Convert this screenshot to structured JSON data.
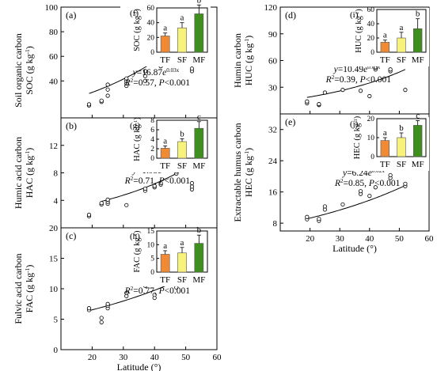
{
  "chart_data": [
    {
      "type": "scatter",
      "panel_label": "(a)",
      "ylabel": [
        "Soil organic carbon",
        "SOC (g kg⁻¹)"
      ],
      "xlabel": "",
      "xlim": [
        10,
        60
      ],
      "ylim": [
        10,
        100
      ],
      "xticks": [],
      "yticks": [
        40,
        60,
        80,
        100
      ],
      "fit": {
        "a": 16.87,
        "b": 0.03,
        "x_range": [
          19,
          52
        ]
      },
      "annotation": {
        "equation": "y=16.87e0.03x",
        "r2": "R2=0.57, P<0.001"
      },
      "points": [
        [
          19,
          20
        ],
        [
          19,
          21
        ],
        [
          23,
          23
        ],
        [
          23,
          24
        ],
        [
          25,
          28
        ],
        [
          25,
          33
        ],
        [
          25,
          37
        ],
        [
          31,
          36
        ],
        [
          31,
          38
        ],
        [
          31,
          40
        ],
        [
          31,
          42
        ],
        [
          37,
          40
        ],
        [
          37,
          44
        ],
        [
          37,
          48
        ],
        [
          42,
          52
        ],
        [
          42,
          56
        ],
        [
          47,
          58
        ],
        [
          47,
          65
        ],
        [
          47,
          70
        ],
        [
          48,
          75
        ],
        [
          48,
          87
        ],
        [
          52,
          48
        ],
        [
          52,
          50
        ]
      ],
      "inset": {
        "panel_label": "(f)",
        "ylabel": "SOC (g kg⁻¹)",
        "categories": [
          "TF",
          "SF",
          "MF"
        ],
        "values": [
          22,
          33,
          52
        ],
        "errors": [
          4,
          7,
          12
        ],
        "letters": [
          "a",
          "a",
          "b"
        ],
        "colors": [
          "#f08a35",
          "#f6f27a",
          "#3f8f1e"
        ],
        "ylim": [
          0,
          60
        ],
        "yticks": [
          0,
          20,
          40,
          60
        ]
      }
    },
    {
      "type": "scatter",
      "panel_label": "(b)",
      "ylabel": [
        "Humic acid carbon",
        "HAC (g kg⁻¹)"
      ],
      "xlabel": "",
      "xlim": [
        10,
        60
      ],
      "ylim": [
        0,
        16
      ],
      "xticks": [],
      "yticks": [
        4,
        8,
        12
      ],
      "fit": {
        "a": 1.93,
        "b": 0.03,
        "x_range": [
          23,
          52
        ]
      },
      "annotation": {
        "equation": "y=1.93e0.03x",
        "r2": "R2=0.71, P<0.001"
      },
      "points": [
        [
          19,
          1.7
        ],
        [
          19,
          1.9
        ],
        [
          23,
          3.4
        ],
        [
          23,
          3.6
        ],
        [
          25,
          3.5
        ],
        [
          25,
          3.8
        ],
        [
          25,
          4.1
        ],
        [
          31,
          3.3
        ],
        [
          37,
          5.4
        ],
        [
          37,
          5.7
        ],
        [
          40,
          5.9
        ],
        [
          40,
          6.1
        ],
        [
          42,
          6.3
        ],
        [
          42,
          6.5
        ],
        [
          47,
          7.9
        ],
        [
          47,
          8.2
        ],
        [
          52,
          5.6
        ],
        [
          52,
          6.0
        ],
        [
          52,
          6.5
        ]
      ],
      "inset": {
        "panel_label": "(g)",
        "ylabel": "HAC (g kg⁻¹)",
        "categories": [
          "TF",
          "SF",
          "MF"
        ],
        "values": [
          2.1,
          3.5,
          6.3
        ],
        "errors": [
          0.5,
          0.6,
          1.4
        ],
        "letters": [
          "a",
          "b",
          "c"
        ],
        "colors": [
          "#f08a35",
          "#f6f27a",
          "#3f8f1e"
        ],
        "ylim": [
          0,
          8
        ],
        "yticks": [
          0,
          2,
          4,
          6,
          8
        ]
      }
    },
    {
      "type": "scatter",
      "panel_label": "(c)",
      "ylabel": [
        "Fulvic acid carbon",
        "FAC (g kg⁻¹)"
      ],
      "xlabel": "Latitude (°)",
      "xlim": [
        10,
        60
      ],
      "ylim": [
        0,
        20
      ],
      "xticks": [
        20,
        30,
        40,
        50,
        60
      ],
      "yticks": [
        0,
        5,
        10,
        15,
        20
      ],
      "fit": {
        "a": 4.38,
        "b": 0.02,
        "x_range": [
          19,
          52
        ]
      },
      "annotation": {
        "equation": "y=4.38e0.02x",
        "r2": "R2=0.77, P<0.001"
      },
      "points": [
        [
          19,
          6.5
        ],
        [
          19,
          6.8
        ],
        [
          23,
          4.5
        ],
        [
          23,
          5.2
        ],
        [
          25,
          6.8
        ],
        [
          25,
          7.2
        ],
        [
          25,
          7.5
        ],
        [
          31,
          8.8
        ],
        [
          31,
          9.3
        ],
        [
          37,
          10.5
        ],
        [
          40,
          8.5
        ],
        [
          40,
          9
        ],
        [
          42,
          11
        ],
        [
          47,
          10.2
        ],
        [
          47,
          11
        ],
        [
          47,
          12
        ],
        [
          48,
          13
        ],
        [
          52,
          11.3
        ]
      ],
      "inset": {
        "panel_label": "(h)",
        "ylabel": "FAC (g kg⁻¹)",
        "categories": [
          "TF",
          "SF",
          "MF"
        ],
        "values": [
          6.5,
          7.0,
          10.5
        ],
        "errors": [
          1.3,
          2.0,
          3.0
        ],
        "letters": [
          "a",
          "a",
          "b"
        ],
        "colors": [
          "#f08a35",
          "#f6f27a",
          "#3f8f1e"
        ],
        "ylim": [
          0,
          15
        ],
        "yticks": [
          0,
          5,
          10,
          15
        ]
      }
    },
    {
      "type": "scatter",
      "panel_label": "(d)",
      "ylabel": [
        "Humin carbon",
        "HUC (g kg⁻¹)"
      ],
      "xlabel": "",
      "xlim": [
        10,
        60
      ],
      "ylim": [
        0,
        120
      ],
      "xticks": [],
      "yticks": [
        30,
        60,
        90,
        120
      ],
      "fit": {
        "a": 10.49,
        "b": 0.03,
        "x_range": [
          19,
          52
        ]
      },
      "annotation": {
        "equation": "y=10.49e0.03x",
        "r2": "R2=0.39, P<0.001"
      },
      "points": [
        [
          19,
          12
        ],
        [
          19,
          14
        ],
        [
          23,
          10
        ],
        [
          23,
          11
        ],
        [
          25,
          24
        ],
        [
          31,
          27
        ],
        [
          37,
          26
        ],
        [
          40,
          20
        ],
        [
          42,
          50
        ],
        [
          42,
          52
        ],
        [
          47,
          48
        ],
        [
          47,
          50
        ],
        [
          52,
          27
        ]
      ],
      "inset": {
        "panel_label": "(i)",
        "ylabel": "HUC (g kg⁻¹)",
        "categories": [
          "TF",
          "SF",
          "MF"
        ],
        "values": [
          14,
          20,
          33
        ],
        "errors": [
          3,
          8,
          14
        ],
        "letters": [
          "a",
          "a",
          "b"
        ],
        "colors": [
          "#f08a35",
          "#f6f27a",
          "#3f8f1e"
        ],
        "ylim": [
          0,
          60
        ],
        "yticks": [
          0,
          20,
          40,
          60
        ]
      }
    },
    {
      "type": "scatter",
      "panel_label": "(e)",
      "ylabel": [
        "Extractable humus carbon",
        "HEC (g kg⁻¹)"
      ],
      "xlabel": "Latitude (°)",
      "xlim": [
        10,
        60
      ],
      "ylim": [
        6,
        36
      ],
      "xticks": [
        20,
        30,
        40,
        50,
        60
      ],
      "yticks": [
        8,
        16,
        24,
        32
      ],
      "fit": {
        "a": 6.24,
        "b": 0.02,
        "x_range": [
          19,
          52
        ]
      },
      "annotation": {
        "equation": "y=6.24e0.02x",
        "r2": "R2=0.85, P<0.001"
      },
      "points": [
        [
          19,
          9
        ],
        [
          19,
          9.6
        ],
        [
          23,
          8.6
        ],
        [
          23,
          9.1
        ],
        [
          25,
          11.5
        ],
        [
          25,
          12.3
        ],
        [
          31,
          12.8
        ],
        [
          37,
          15.5
        ],
        [
          37,
          16.2
        ],
        [
          40,
          15
        ],
        [
          42,
          17.2
        ],
        [
          47,
          19.6
        ],
        [
          47,
          20.3
        ],
        [
          52,
          17.5
        ],
        [
          52,
          18.1
        ]
      ],
      "inset": {
        "panel_label": "(j)",
        "ylabel": "HEC (g kg⁻¹)",
        "categories": [
          "TF",
          "SF",
          "MF"
        ],
        "values": [
          8.5,
          10.0,
          16.5
        ],
        "errors": [
          1.5,
          2.5,
          2.5
        ],
        "letters": [
          "a",
          "b",
          "c"
        ],
        "colors": [
          "#f08a35",
          "#f6f27a",
          "#3f8f1e"
        ],
        "ylim": [
          0,
          20
        ],
        "yticks": [
          0,
          10,
          20
        ]
      }
    }
  ]
}
